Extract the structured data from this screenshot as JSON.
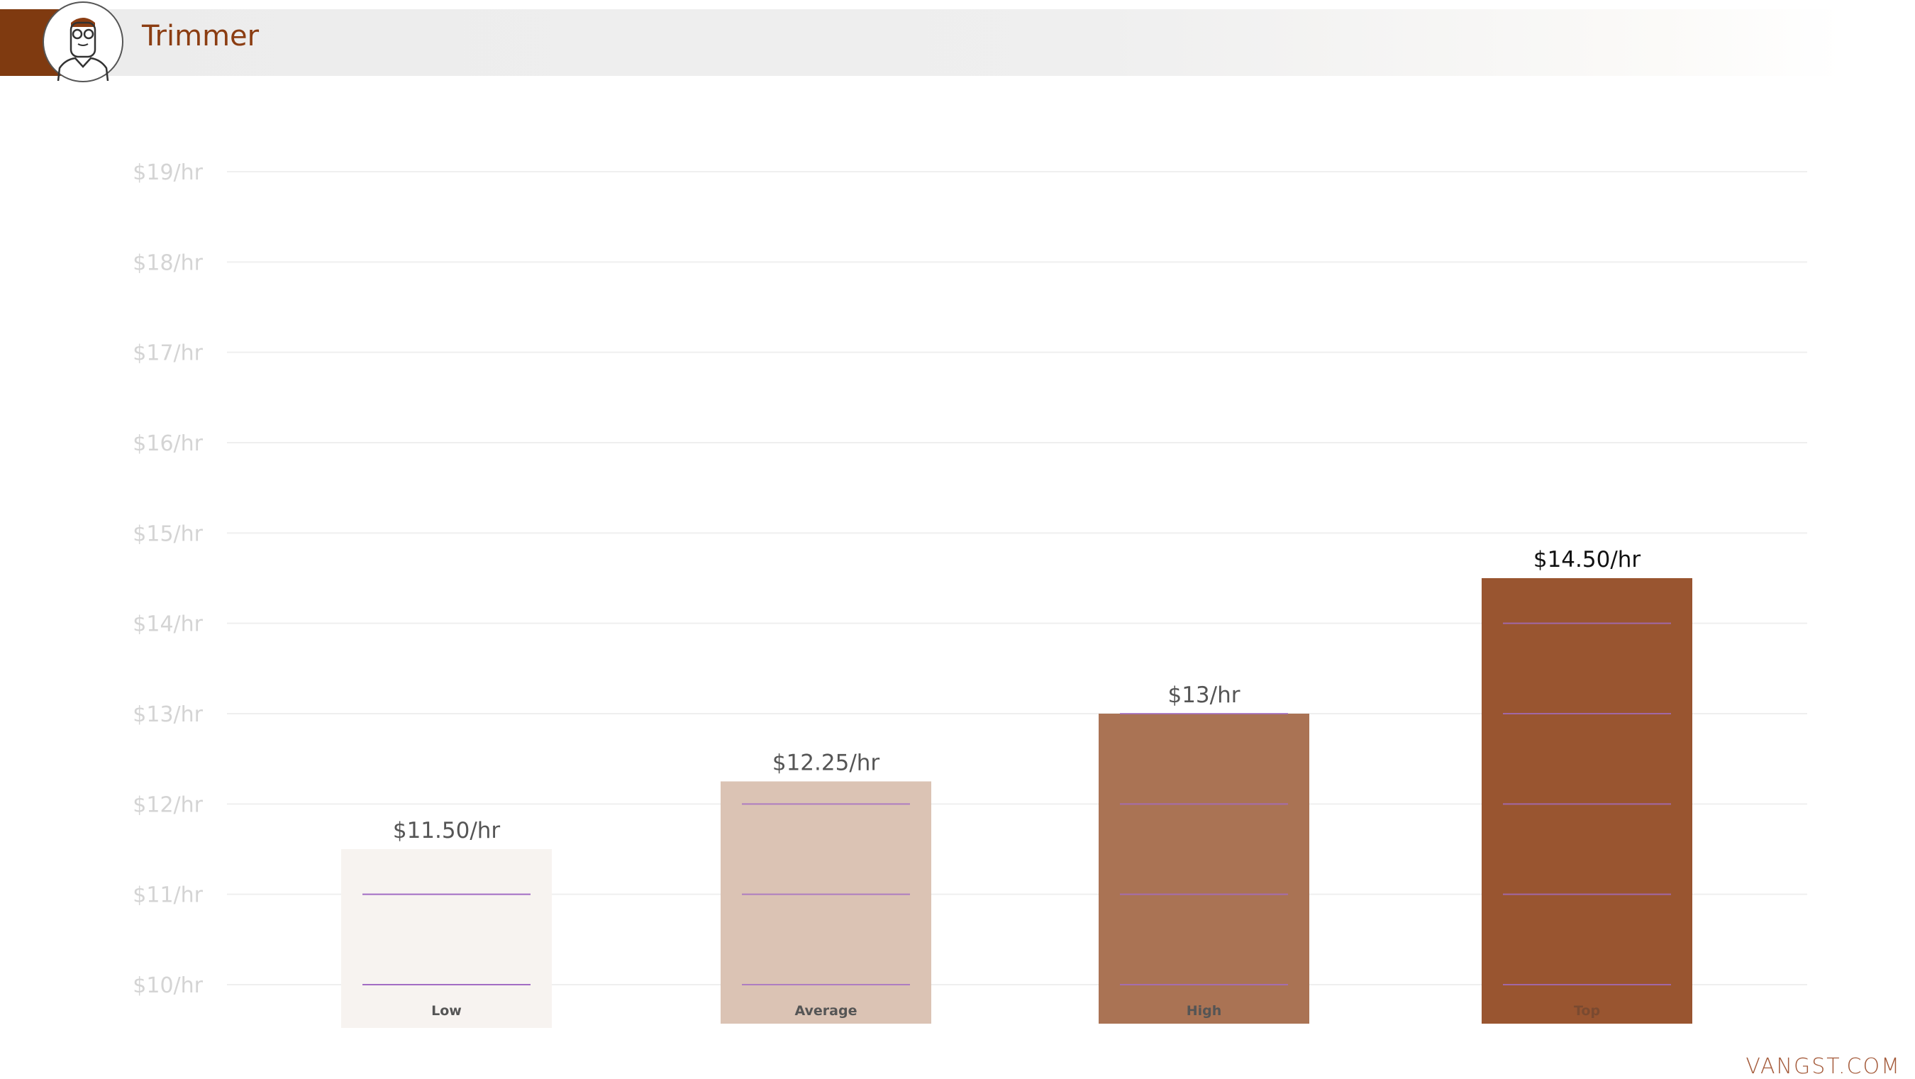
{
  "header": {
    "title": "Trimmer",
    "avatar_icon": "bearded-man-avatar-icon",
    "accent_color": "#7f3a10"
  },
  "footer": {
    "brand": "VANGST.COM"
  },
  "chart_data": {
    "type": "bar",
    "title": "Trimmer",
    "categories": [
      "Low",
      "Average",
      "High",
      "Top"
    ],
    "values": [
      11.5,
      12.25,
      13,
      14.5
    ],
    "value_labels": [
      "$11.50/hr",
      "$12.25/hr",
      "$13/hr",
      "$14.50/hr"
    ],
    "colors": [
      "#f7f3f0",
      "#dbc3b4",
      "#aa7354",
      "#995530"
    ],
    "ylim": [
      10,
      19
    ],
    "yticks": [
      10,
      11,
      12,
      13,
      14,
      15,
      16,
      17,
      18,
      19
    ],
    "ytick_labels": [
      "$10/hr",
      "$11/hr",
      "$12/hr",
      "$13/hr",
      "$14/hr",
      "$15/hr",
      "$16/hr",
      "$17/hr",
      "$18/hr",
      "$19/hr"
    ],
    "grid": true,
    "xlabel": "",
    "ylabel": ""
  }
}
